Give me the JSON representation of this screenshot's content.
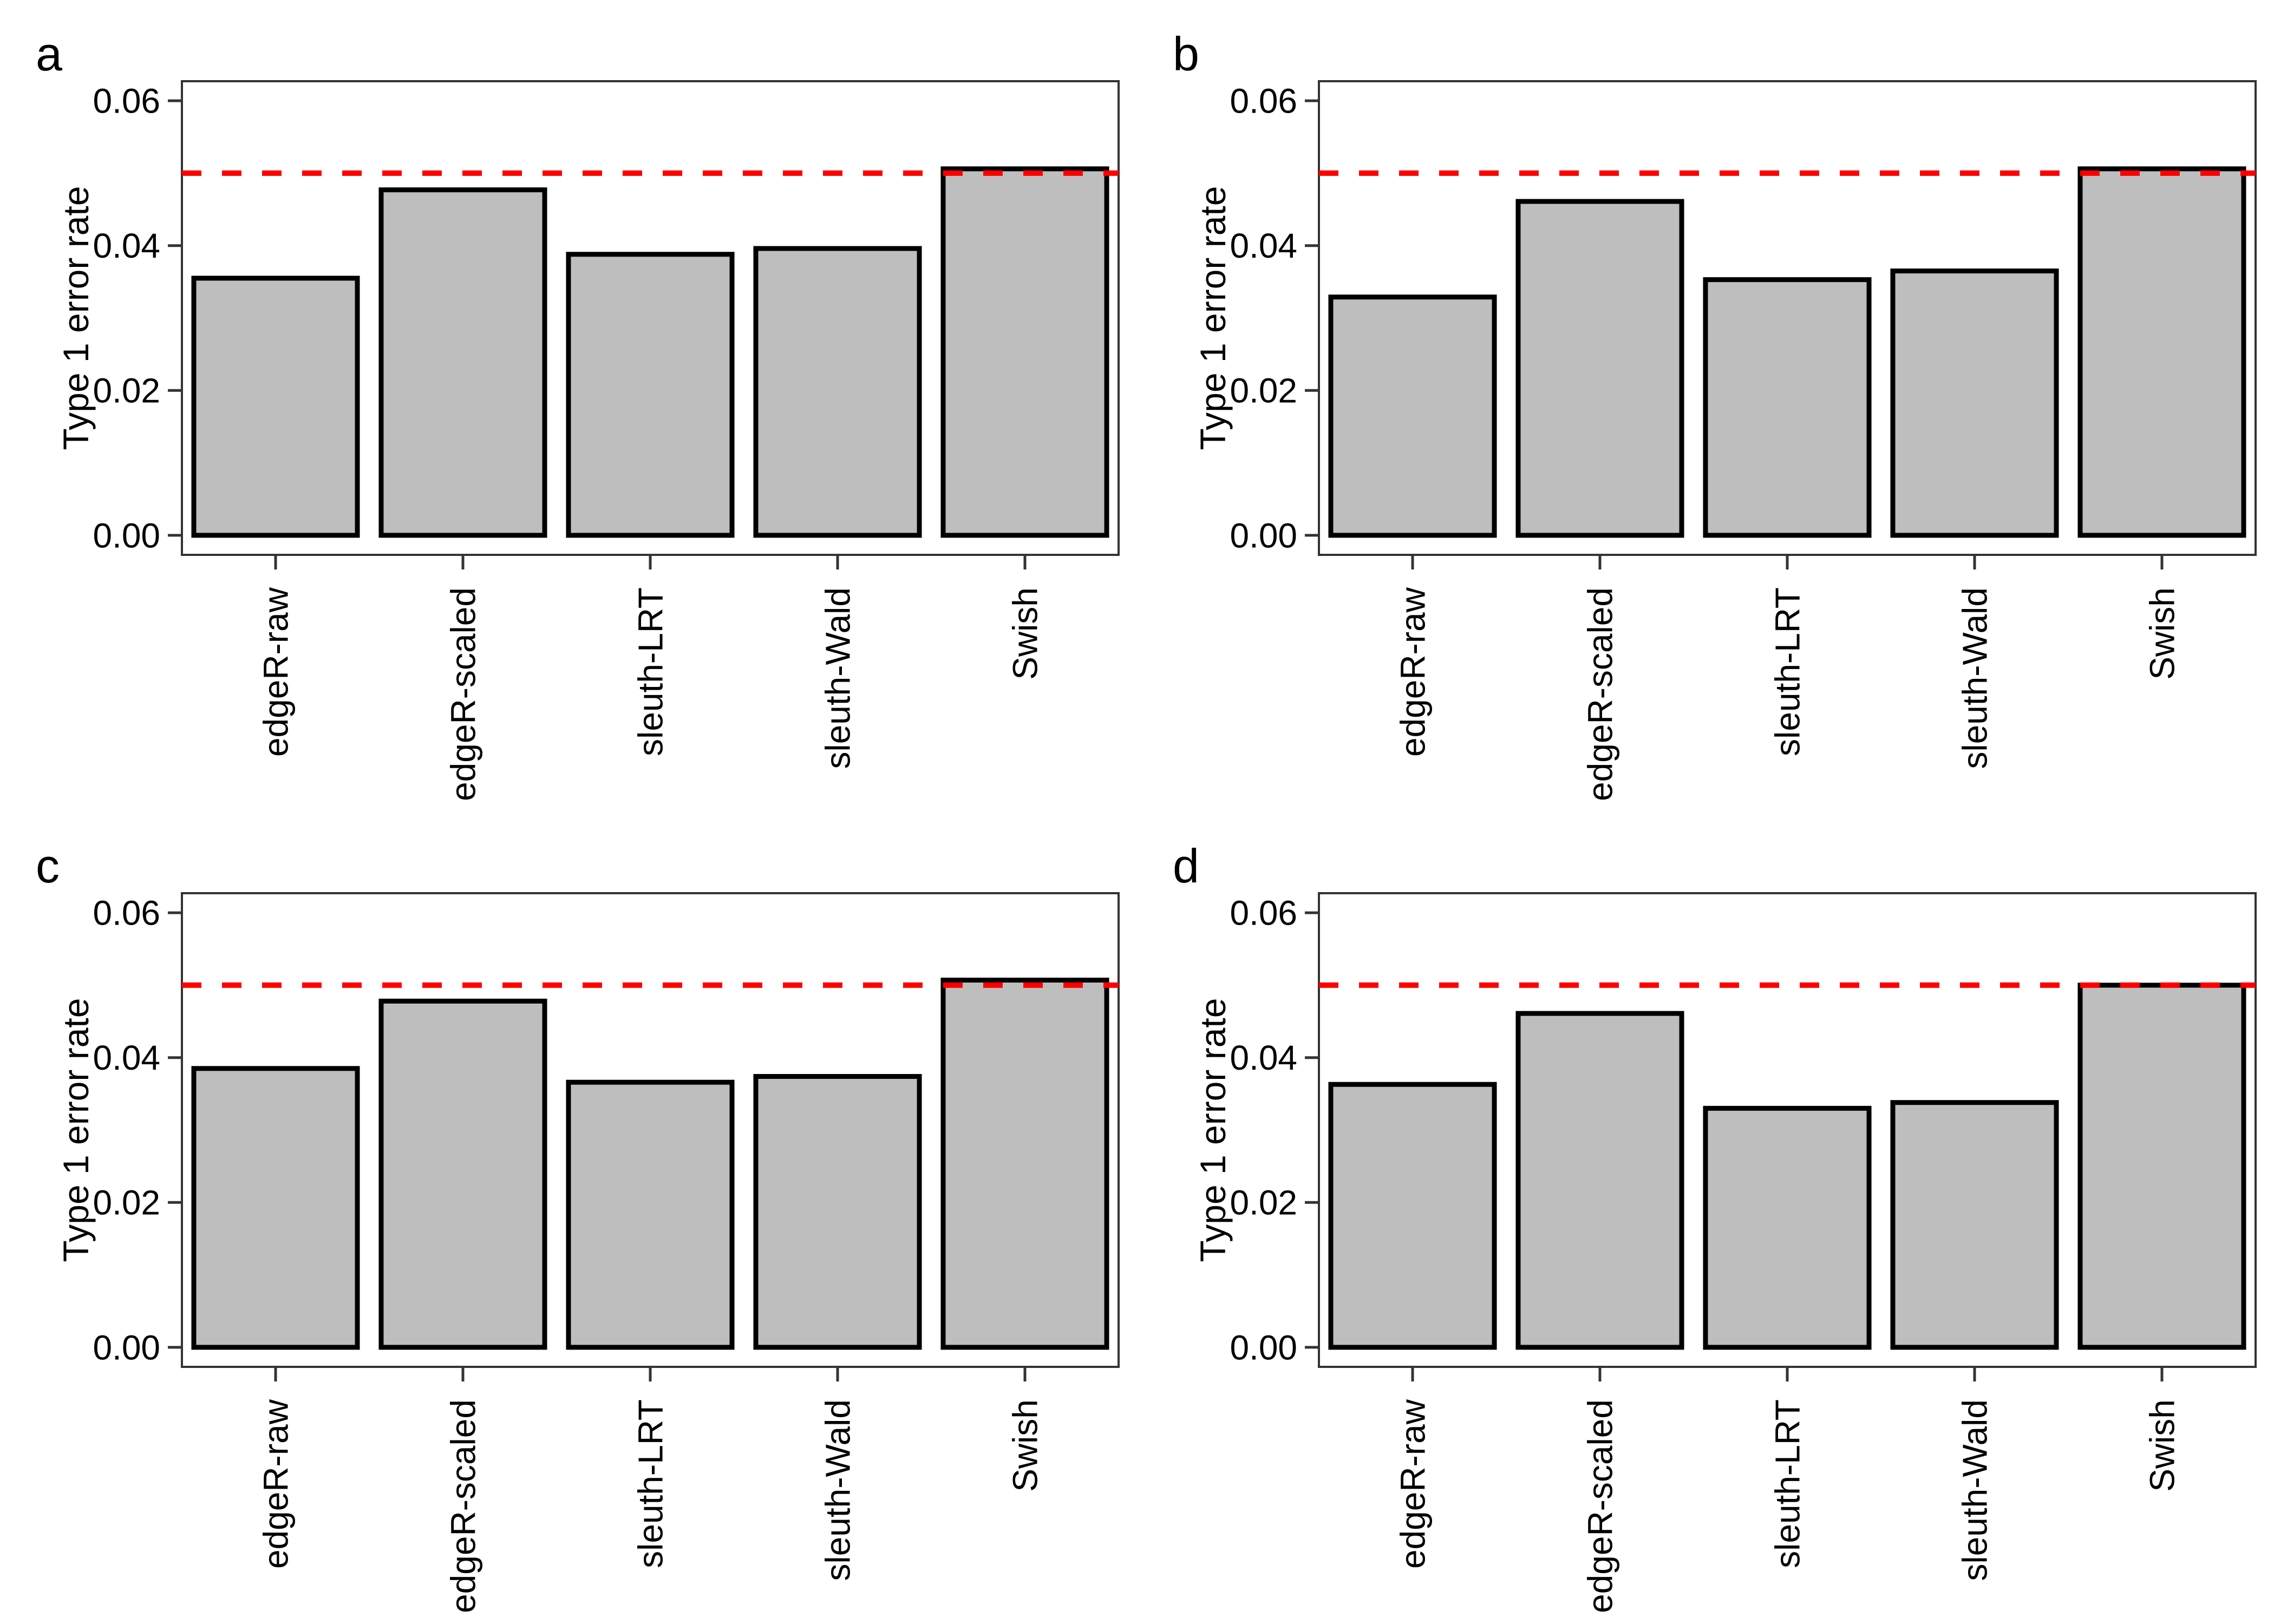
{
  "figure": {
    "kind": "four-panel bar chart figure",
    "panel_letters": [
      "a",
      "b",
      "c",
      "d"
    ]
  },
  "colors": {
    "bar_fill": "#BEBEBE",
    "bar_stroke": "#000000",
    "reference_line": "#FF0000",
    "panel_border": "#333333",
    "tick_mark": "#333333",
    "text": "#000000",
    "background": "#FFFFFF"
  },
  "axis": {
    "y_label": "Type 1 error rate",
    "y_ticks": [
      0,
      0.02,
      0.04,
      0.06
    ],
    "y_tick_labels": [
      "0.00",
      "0.02",
      "0.04",
      "0.06"
    ],
    "x_tick_labels_rotation_deg": -90
  },
  "chart_data": [
    {
      "type": "bar",
      "panel": "a",
      "categories": [
        "edgeR-raw",
        "edgeR-scaled",
        "sleuth-LRT",
        "sleuth-Wald",
        "Swish"
      ],
      "values": [
        0.0355,
        0.0477,
        0.0388,
        0.0396,
        0.0506
      ],
      "title": "",
      "xlabel": "",
      "ylabel": "Type 1 error rate",
      "ylim": [
        0,
        0.06
      ],
      "y_ticks": [
        0,
        0.02,
        0.04,
        0.06
      ],
      "y_tick_labels": [
        "0.00",
        "0.02",
        "0.04",
        "0.06"
      ],
      "reference_line": 0.05,
      "reference_line_style": "dashed-red",
      "grid": "off",
      "legend": "none"
    },
    {
      "type": "bar",
      "panel": "b",
      "categories": [
        "edgeR-raw",
        "edgeR-scaled",
        "sleuth-LRT",
        "sleuth-Wald",
        "Swish"
      ],
      "values": [
        0.0329,
        0.0461,
        0.0353,
        0.0365,
        0.0506
      ],
      "title": "",
      "xlabel": "",
      "ylabel": "Type 1 error rate",
      "ylim": [
        0,
        0.06
      ],
      "y_ticks": [
        0,
        0.02,
        0.04,
        0.06
      ],
      "y_tick_labels": [
        "0.00",
        "0.02",
        "0.04",
        "0.06"
      ],
      "reference_line": 0.05,
      "reference_line_style": "dashed-red",
      "grid": "off",
      "legend": "none"
    },
    {
      "type": "bar",
      "panel": "c",
      "categories": [
        "edgeR-raw",
        "edgeR-scaled",
        "sleuth-LRT",
        "sleuth-Wald",
        "Swish"
      ],
      "values": [
        0.0385,
        0.0478,
        0.0366,
        0.0374,
        0.0507
      ],
      "title": "",
      "xlabel": "",
      "ylabel": "Type 1 error rate",
      "ylim": [
        0,
        0.06
      ],
      "y_ticks": [
        0,
        0.02,
        0.04,
        0.06
      ],
      "y_tick_labels": [
        "0.00",
        "0.02",
        "0.04",
        "0.06"
      ],
      "reference_line": 0.05,
      "reference_line_style": "dashed-red",
      "grid": "off",
      "legend": "none"
    },
    {
      "type": "bar",
      "panel": "d",
      "categories": [
        "edgeR-raw",
        "edgeR-scaled",
        "sleuth-LRT",
        "sleuth-Wald",
        "Swish"
      ],
      "values": [
        0.0363,
        0.0461,
        0.033,
        0.0338,
        0.05
      ],
      "title": "",
      "xlabel": "",
      "ylabel": "Type 1 error rate",
      "ylim": [
        0,
        0.06
      ],
      "y_ticks": [
        0,
        0.02,
        0.04,
        0.06
      ],
      "y_tick_labels": [
        "0.00",
        "0.02",
        "0.04",
        "0.06"
      ],
      "reference_line": 0.05,
      "reference_line_style": "dashed-red",
      "grid": "off",
      "legend": "none"
    }
  ]
}
